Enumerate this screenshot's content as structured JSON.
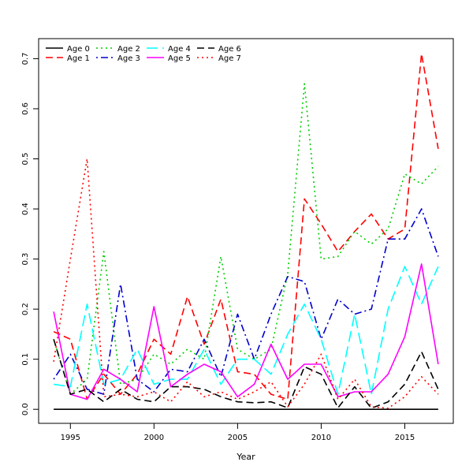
{
  "chart_data": {
    "type": "line",
    "title": "",
    "xlabel": "Year",
    "ylabel": "",
    "xlim": [
      1993.1,
      2017.9
    ],
    "ylim": [
      -0.028,
      0.74
    ],
    "x_ticks": [
      1995,
      2000,
      2005,
      2010,
      2015
    ],
    "y_ticks": [
      0.0,
      0.1,
      0.2,
      0.3,
      0.4,
      0.5,
      0.6,
      0.7
    ],
    "x_tick_labels": [
      "1995",
      "2000",
      "2005",
      "2010",
      "2015"
    ],
    "y_tick_labels": [
      "0.0",
      "0.1",
      "0.2",
      "0.3",
      "0.4",
      "0.5",
      "0.6",
      "0.7"
    ],
    "grid": false,
    "legend_position": "top-left",
    "x": [
      1994,
      1995,
      1996,
      1997,
      1998,
      1999,
      2000,
      2001,
      2002,
      2003,
      2004,
      2005,
      2006,
      2007,
      2008,
      2009,
      2010,
      2011,
      2012,
      2013,
      2014,
      2015,
      2016,
      2017
    ],
    "series": [
      {
        "name": "Age 0",
        "color": "#000000",
        "dash": "solid",
        "values": [
          0,
          0,
          0,
          0,
          0,
          0,
          0,
          0,
          0,
          0,
          0,
          0,
          0,
          0,
          0,
          0,
          0,
          0,
          0,
          0,
          0,
          0,
          0,
          0
        ]
      },
      {
        "name": "Age 1",
        "color": "#ff0000",
        "dash": "dashed",
        "values": [
          0.155,
          0.14,
          0.02,
          0.07,
          0.03,
          0.07,
          0.14,
          0.11,
          0.225,
          0.13,
          0.22,
          0.075,
          0.07,
          0.03,
          0.02,
          0.42,
          0.37,
          0.315,
          0.355,
          0.39,
          0.34,
          0.36,
          0.71,
          0.52
        ]
      },
      {
        "name": "Age 2",
        "color": "#00cd00",
        "dash": "dotted",
        "values": [
          0.14,
          0.03,
          0.06,
          0.315,
          0.05,
          0.06,
          0.11,
          0.09,
          0.12,
          0.1,
          0.305,
          0.12,
          0.1,
          0.12,
          0.27,
          0.65,
          0.3,
          0.305,
          0.355,
          0.33,
          0.36,
          0.47,
          0.45,
          0.485
        ]
      },
      {
        "name": "Age 3",
        "color": "#0000cd",
        "dash": "dotdash",
        "values": [
          0.06,
          0.11,
          0.04,
          0.03,
          0.25,
          0.06,
          0.035,
          0.08,
          0.075,
          0.14,
          0.065,
          0.19,
          0.1,
          0.19,
          0.265,
          0.255,
          0.14,
          0.22,
          0.19,
          0.2,
          0.34,
          0.34,
          0.4,
          0.305
        ]
      },
      {
        "name": "Age 4",
        "color": "#00ffff",
        "dash": "longdash",
        "values": [
          0.05,
          0.045,
          0.21,
          0.05,
          0.06,
          0.12,
          0.05,
          0.06,
          0.06,
          0.12,
          0.05,
          0.1,
          0.1,
          0.07,
          0.15,
          0.21,
          0.14,
          0.03,
          0.19,
          0.03,
          0.2,
          0.285,
          0.21,
          0.285
        ]
      },
      {
        "name": "Age 5",
        "color": "#ff00ff",
        "dash": "solid",
        "values": [
          0.195,
          0.03,
          0.02,
          0.08,
          0.06,
          0.035,
          0.205,
          0.045,
          0.07,
          0.09,
          0.075,
          0.025,
          0.05,
          0.13,
          0.06,
          0.09,
          0.09,
          0.025,
          0.035,
          0.035,
          0.07,
          0.145,
          0.29,
          0.09
        ]
      },
      {
        "name": "Age 6",
        "color": "#000000",
        "dash": "dashed",
        "values": [
          0.14,
          0.03,
          0.04,
          0.015,
          0.04,
          0.02,
          0.015,
          0.045,
          0.045,
          0.04,
          0.025,
          0.015,
          0.013,
          0.015,
          0.003,
          0.085,
          0.07,
          0.003,
          0.045,
          0.002,
          0.015,
          0.05,
          0.115,
          0.04
        ]
      },
      {
        "name": "Age 7",
        "color": "#ff0000",
        "dash": "dotted",
        "values": [
          0.095,
          0.3,
          0.5,
          0.025,
          0.03,
          0.025,
          0.035,
          0.015,
          0.055,
          0.025,
          0.035,
          0.02,
          0.035,
          0.055,
          0.005,
          0.05,
          0.11,
          0.02,
          0.06,
          0.005,
          0.002,
          0.025,
          0.065,
          0.03
        ]
      }
    ]
  }
}
